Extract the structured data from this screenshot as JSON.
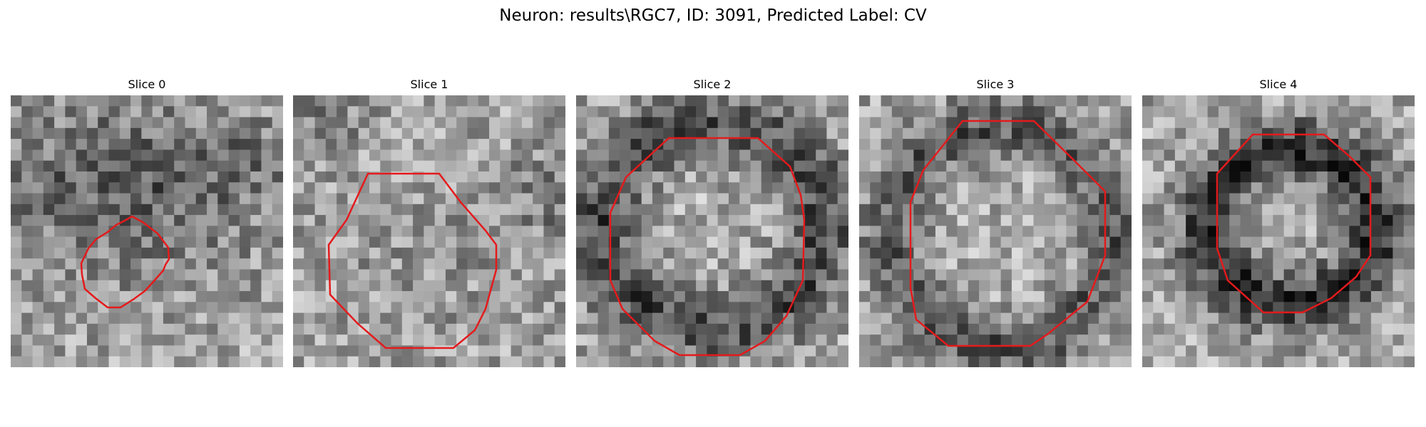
{
  "figure": {
    "title": "Neuron: results\\RGC7, ID: 3091, Predicted Label: CV",
    "contour_color": "#e41a1c"
  },
  "panels": [
    {
      "title": "Slice 0"
    },
    {
      "title": "Slice 1"
    },
    {
      "title": "Slice 2"
    },
    {
      "title": "Slice 3"
    },
    {
      "title": "Slice 4"
    }
  ]
}
